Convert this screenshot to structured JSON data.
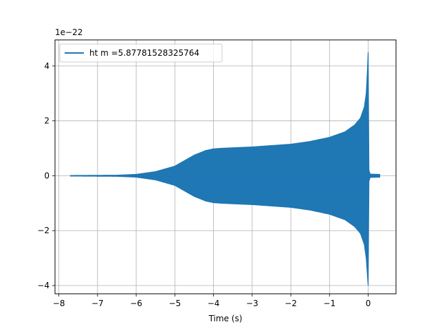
{
  "chart_data": {
    "type": "line",
    "xlabel": "Time (s)",
    "ylabel": "",
    "y_offset_label": "1e−22",
    "xlim": [
      -8.1,
      0.72
    ],
    "ylim": [
      -4.3,
      4.95
    ],
    "x_ticks": [
      -8,
      -7,
      -6,
      -5,
      -4,
      -3,
      -2,
      -1,
      0
    ],
    "y_ticks": [
      -4,
      -2,
      0,
      2,
      4
    ],
    "grid": true,
    "legend_position": "upper-left",
    "series": [
      {
        "name": "ht m =5.87781528325764",
        "color": "#1f77b4",
        "style": "oscillating waveform (filled envelope)",
        "envelope": {
          "x": [
            -7.7,
            -6.5,
            -6.0,
            -5.5,
            -5.0,
            -4.5,
            -4.2,
            -4.0,
            -3.8,
            -3.5,
            -3.0,
            -2.5,
            -2.0,
            -1.5,
            -1.0,
            -0.6,
            -0.35,
            -0.2,
            -0.1,
            -0.05,
            -0.02,
            0.0,
            0.02,
            0.05,
            0.3
          ],
          "upper": [
            0.01,
            0.02,
            0.05,
            0.15,
            0.35,
            0.75,
            0.92,
            0.98,
            1.0,
            1.02,
            1.05,
            1.1,
            1.15,
            1.25,
            1.4,
            1.6,
            1.85,
            2.1,
            2.5,
            3.0,
            3.8,
            4.5,
            0.2,
            0.06,
            0.05
          ],
          "lower": [
            -0.01,
            -0.02,
            -0.05,
            -0.15,
            -0.35,
            -0.75,
            -0.92,
            -0.98,
            -1.0,
            -1.02,
            -1.05,
            -1.1,
            -1.15,
            -1.25,
            -1.4,
            -1.6,
            -1.85,
            -2.1,
            -2.5,
            -3.0,
            -3.6,
            -4.0,
            -0.2,
            -0.06,
            -0.05
          ]
        }
      }
    ]
  }
}
